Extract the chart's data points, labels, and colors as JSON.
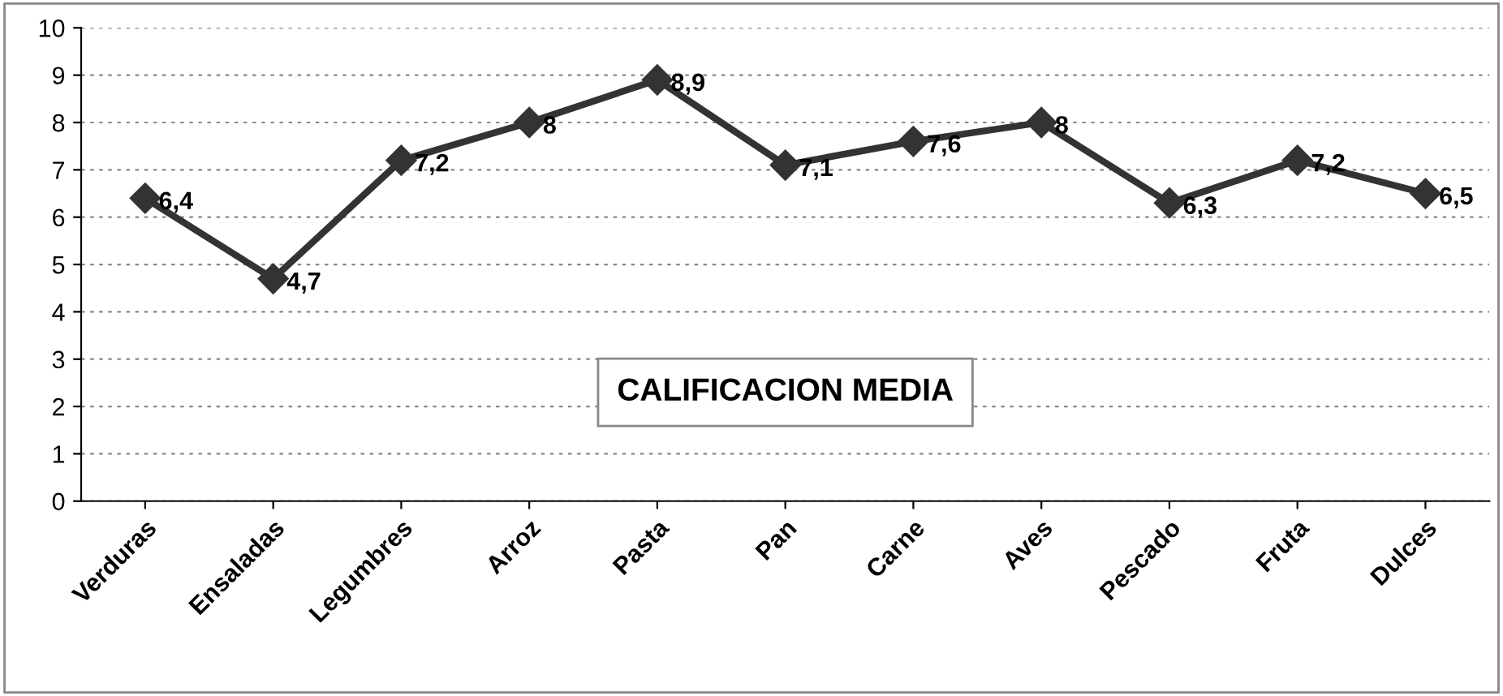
{
  "chart_data": {
    "type": "line",
    "title": "CALIFICACION MEDIA",
    "categories": [
      "Verduras",
      "Ensaladas",
      "Legumbres",
      "Arroz",
      "Pasta",
      "Pan",
      "Carne",
      "Aves",
      "Pescado",
      "Fruta",
      "Dulces"
    ],
    "series": [
      {
        "color": "#333333",
        "values": [
          6.4,
          4.7,
          7.2,
          8,
          8.9,
          7.1,
          7.6,
          8,
          6.3,
          7.2,
          6.5
        ],
        "value_labels": [
          "6,4",
          "4,7",
          "7,2",
          "8",
          "8,9",
          "7,1",
          "7,6",
          "8",
          "6,3",
          "7,2",
          "6,5"
        ]
      }
    ],
    "ylim": [
      0,
      10
    ],
    "yticks": [
      0,
      1,
      2,
      3,
      4,
      5,
      6,
      7,
      8,
      9,
      10
    ],
    "grid": "y",
    "marker": "diamond",
    "line_style": "solid",
    "legend": false
  }
}
